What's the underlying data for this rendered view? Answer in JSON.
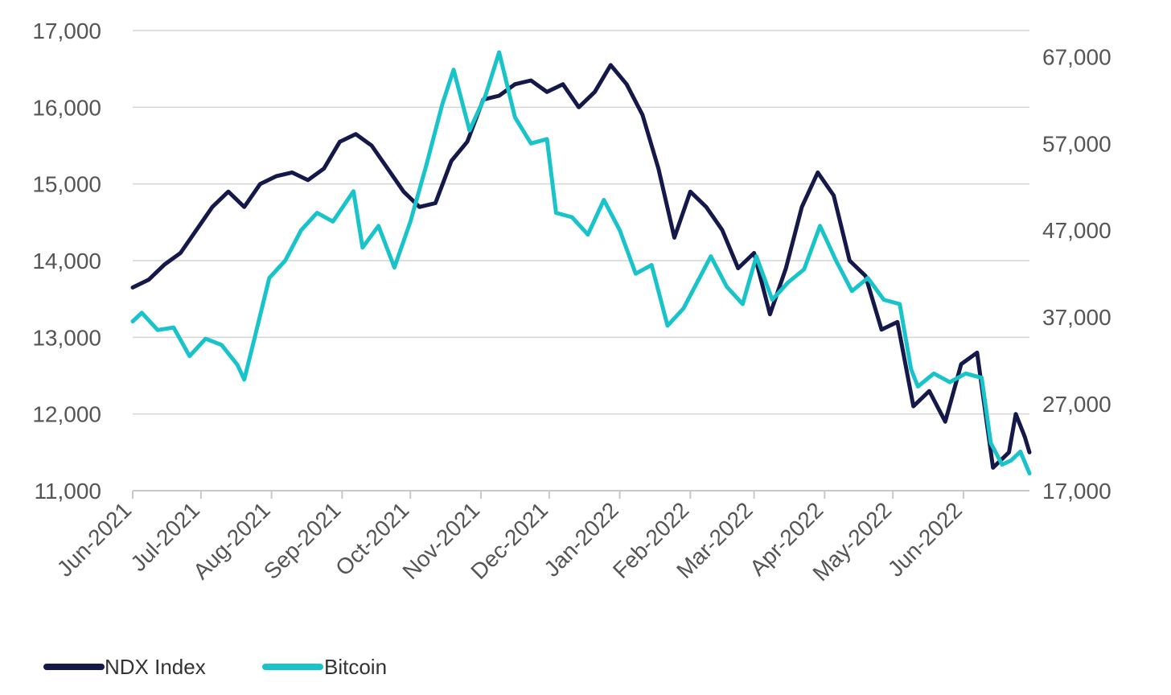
{
  "chart_data": {
    "type": "line",
    "title": "",
    "xlabel": "",
    "ylabel": "",
    "y2label": "",
    "grid": true,
    "x_range": [
      "2021-06-01",
      "2022-06-30"
    ],
    "x_ticks": [
      "Jun-2021",
      "Jul-2021",
      "Aug-2021",
      "Sep-2021",
      "Oct-2021",
      "Nov-2021",
      "Dec-2021",
      "Jan-2022",
      "Feb-2022",
      "Mar-2022",
      "Apr-2022",
      "May-2022",
      "Jun-2022"
    ],
    "y_left": {
      "min": 11000,
      "max": 17000,
      "ticks": [
        "11,000",
        "12,000",
        "13,000",
        "14,000",
        "15,000",
        "16,000",
        "17,000"
      ]
    },
    "y_right": {
      "min": 17000,
      "max": 70000,
      "ticks": [
        "17,000",
        "27,000",
        "37,000",
        "47,000",
        "57,000",
        "67,000"
      ]
    },
    "legend_position": "bottom-left",
    "series": [
      {
        "name": "NDX Index",
        "axis": "left",
        "color": "#14194a",
        "points": [
          [
            "2021-06-01",
            13650
          ],
          [
            "2021-06-08",
            13750
          ],
          [
            "2021-06-15",
            13950
          ],
          [
            "2021-06-22",
            14100
          ],
          [
            "2021-06-29",
            14400
          ],
          [
            "2021-07-06",
            14700
          ],
          [
            "2021-07-13",
            14900
          ],
          [
            "2021-07-20",
            14700
          ],
          [
            "2021-07-27",
            15000
          ],
          [
            "2021-08-03",
            15100
          ],
          [
            "2021-08-10",
            15150
          ],
          [
            "2021-08-17",
            15050
          ],
          [
            "2021-08-24",
            15200
          ],
          [
            "2021-08-31",
            15550
          ],
          [
            "2021-09-07",
            15650
          ],
          [
            "2021-09-14",
            15500
          ],
          [
            "2021-09-21",
            15200
          ],
          [
            "2021-09-28",
            14900
          ],
          [
            "2021-10-05",
            14700
          ],
          [
            "2021-10-12",
            14750
          ],
          [
            "2021-10-19",
            15300
          ],
          [
            "2021-10-26",
            15550
          ],
          [
            "2021-11-02",
            16100
          ],
          [
            "2021-11-09",
            16150
          ],
          [
            "2021-11-16",
            16300
          ],
          [
            "2021-11-23",
            16350
          ],
          [
            "2021-11-30",
            16200
          ],
          [
            "2021-12-07",
            16300
          ],
          [
            "2021-12-14",
            16000
          ],
          [
            "2021-12-21",
            16200
          ],
          [
            "2021-12-28",
            16550
          ],
          [
            "2022-01-04",
            16300
          ],
          [
            "2022-01-11",
            15900
          ],
          [
            "2022-01-18",
            15200
          ],
          [
            "2022-01-25",
            14300
          ],
          [
            "2022-02-01",
            14900
          ],
          [
            "2022-02-08",
            14700
          ],
          [
            "2022-02-15",
            14400
          ],
          [
            "2022-02-22",
            13900
          ],
          [
            "2022-03-01",
            14100
          ],
          [
            "2022-03-08",
            13300
          ],
          [
            "2022-03-15",
            13900
          ],
          [
            "2022-03-22",
            14700
          ],
          [
            "2022-03-29",
            15150
          ],
          [
            "2022-04-05",
            14850
          ],
          [
            "2022-04-12",
            14000
          ],
          [
            "2022-04-19",
            13800
          ],
          [
            "2022-04-26",
            13100
          ],
          [
            "2022-05-03",
            13200
          ],
          [
            "2022-05-10",
            12100
          ],
          [
            "2022-05-17",
            12300
          ],
          [
            "2022-05-24",
            11900
          ],
          [
            "2022-05-31",
            12650
          ],
          [
            "2022-06-07",
            12800
          ],
          [
            "2022-06-14",
            11300
          ],
          [
            "2022-06-21",
            11500
          ],
          [
            "2022-06-24",
            12000
          ],
          [
            "2022-06-28",
            11700
          ],
          [
            "2022-06-30",
            11500
          ]
        ]
      },
      {
        "name": "Bitcoin",
        "axis": "right",
        "color": "#18c4c9",
        "points": [
          [
            "2021-06-01",
            36500
          ],
          [
            "2021-06-05",
            37500
          ],
          [
            "2021-06-12",
            35500
          ],
          [
            "2021-06-19",
            35800
          ],
          [
            "2021-06-26",
            32500
          ],
          [
            "2021-07-03",
            34500
          ],
          [
            "2021-07-10",
            33800
          ],
          [
            "2021-07-17",
            31500
          ],
          [
            "2021-07-20",
            29800
          ],
          [
            "2021-07-24",
            34000
          ],
          [
            "2021-07-31",
            41500
          ],
          [
            "2021-08-07",
            43500
          ],
          [
            "2021-08-14",
            47000
          ],
          [
            "2021-08-21",
            49000
          ],
          [
            "2021-08-28",
            48000
          ],
          [
            "2021-09-06",
            51500
          ],
          [
            "2021-09-10",
            45000
          ],
          [
            "2021-09-17",
            47500
          ],
          [
            "2021-09-24",
            42700
          ],
          [
            "2021-10-01",
            48000
          ],
          [
            "2021-10-08",
            54500
          ],
          [
            "2021-10-15",
            61500
          ],
          [
            "2021-10-20",
            65500
          ],
          [
            "2021-10-27",
            58500
          ],
          [
            "2021-11-03",
            62500
          ],
          [
            "2021-11-09",
            67500
          ],
          [
            "2021-11-16",
            60000
          ],
          [
            "2021-11-23",
            57000
          ],
          [
            "2021-11-30",
            57500
          ],
          [
            "2021-12-04",
            49000
          ],
          [
            "2021-12-11",
            48500
          ],
          [
            "2021-12-18",
            46500
          ],
          [
            "2021-12-25",
            50500
          ],
          [
            "2022-01-01",
            47000
          ],
          [
            "2022-01-08",
            42000
          ],
          [
            "2022-01-15",
            43000
          ],
          [
            "2022-01-22",
            36000
          ],
          [
            "2022-01-29",
            38000
          ],
          [
            "2022-02-05",
            41500
          ],
          [
            "2022-02-10",
            44000
          ],
          [
            "2022-02-17",
            40500
          ],
          [
            "2022-02-24",
            38500
          ],
          [
            "2022-03-02",
            44000
          ],
          [
            "2022-03-09",
            39000
          ],
          [
            "2022-03-16",
            41000
          ],
          [
            "2022-03-23",
            42500
          ],
          [
            "2022-03-30",
            47500
          ],
          [
            "2022-04-06",
            43500
          ],
          [
            "2022-04-13",
            40000
          ],
          [
            "2022-04-20",
            41500
          ],
          [
            "2022-04-27",
            39000
          ],
          [
            "2022-05-04",
            38500
          ],
          [
            "2022-05-09",
            31000
          ],
          [
            "2022-05-12",
            29000
          ],
          [
            "2022-05-19",
            30500
          ],
          [
            "2022-05-26",
            29500
          ],
          [
            "2022-06-02",
            30500
          ],
          [
            "2022-06-09",
            30000
          ],
          [
            "2022-06-13",
            22500
          ],
          [
            "2022-06-18",
            20000
          ],
          [
            "2022-06-22",
            20500
          ],
          [
            "2022-06-26",
            21500
          ],
          [
            "2022-06-30",
            19000
          ]
        ]
      }
    ]
  }
}
